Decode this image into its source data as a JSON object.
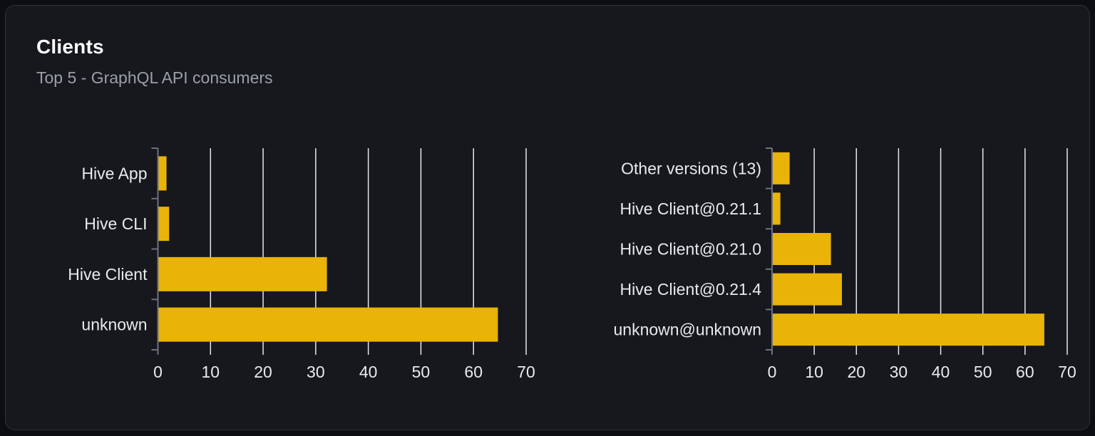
{
  "card": {
    "title": "Clients",
    "subtitle": "Top 5 - GraphQL API consumers"
  },
  "colors": {
    "bar": "#eab308",
    "grid_line": "#e5e7eb",
    "axis_line": "#6b7280",
    "category_label": "#e8eaed",
    "tick_label": "#e8eaed",
    "card_bg": "#16181d",
    "page_bg": "#0c0e11",
    "card_border": "#2e3138",
    "title_color": "#ffffff",
    "subtitle_color": "#99a0aa"
  },
  "chart_data": [
    {
      "type": "bar",
      "orientation": "horizontal",
      "title": "",
      "name": "clients-top5",
      "categories": [
        "Hive App",
        "Hive CLI",
        "Hive Client",
        "unknown"
      ],
      "values": [
        1.5,
        2,
        32,
        64.5
      ],
      "xlim": [
        0,
        70
      ],
      "xticks": [
        0,
        10,
        20,
        30,
        40,
        50,
        60,
        70
      ],
      "grid": true,
      "legend": "none"
    },
    {
      "type": "bar",
      "orientation": "horizontal",
      "title": "",
      "name": "client-versions-top5",
      "categories": [
        "Other versions (13)",
        "Hive Client@0.21.1",
        "Hive Client@0.21.0",
        "Hive Client@0.21.4",
        "unknown@unknown"
      ],
      "values": [
        4,
        1.8,
        13.8,
        16.4,
        64.4
      ],
      "xlim": [
        0,
        70
      ],
      "xticks": [
        0,
        10,
        20,
        30,
        40,
        50,
        60,
        70
      ],
      "grid": true,
      "legend": "none"
    }
  ]
}
